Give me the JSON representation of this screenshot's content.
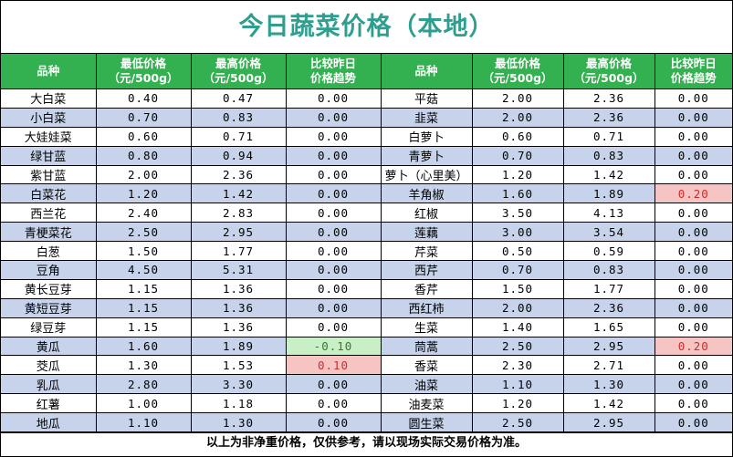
{
  "title": "今日蔬菜价格（本地）",
  "headers": {
    "name": "品种",
    "low": "最低价格（元/500g）",
    "high": "最高价格（元/500g）",
    "trend": "比较昨日价格趋势"
  },
  "rows": [
    {
      "left": {
        "name": "大白菜",
        "low": "0.40",
        "high": "0.47",
        "trend": "0.00"
      },
      "right": {
        "name": "平菇",
        "low": "2.00",
        "high": "2.36",
        "trend": "0.00"
      }
    },
    {
      "left": {
        "name": "小白菜",
        "low": "0.70",
        "high": "0.83",
        "trend": "0.00"
      },
      "right": {
        "name": "韭菜",
        "low": "2.00",
        "high": "2.36",
        "trend": "0.00"
      }
    },
    {
      "left": {
        "name": "大娃娃菜",
        "low": "0.60",
        "high": "0.71",
        "trend": "0.00"
      },
      "right": {
        "name": "白萝卜",
        "low": "0.60",
        "high": "0.71",
        "trend": "0.00"
      }
    },
    {
      "left": {
        "name": "绿甘蓝",
        "low": "0.80",
        "high": "0.94",
        "trend": "0.00"
      },
      "right": {
        "name": "青萝卜",
        "low": "0.70",
        "high": "0.83",
        "trend": "0.00"
      }
    },
    {
      "left": {
        "name": "紫甘蓝",
        "low": "2.00",
        "high": "2.36",
        "trend": "0.00"
      },
      "right": {
        "name": "萝卜（心里美）",
        "low": "1.20",
        "high": "1.42",
        "trend": "0.00"
      }
    },
    {
      "left": {
        "name": "白菜花",
        "low": "1.20",
        "high": "1.42",
        "trend": "0.00"
      },
      "right": {
        "name": "羊角椒",
        "low": "1.60",
        "high": "1.89",
        "trend": "0.20"
      }
    },
    {
      "left": {
        "name": "西兰花",
        "low": "2.40",
        "high": "2.83",
        "trend": "0.00"
      },
      "right": {
        "name": "红椒",
        "low": "3.50",
        "high": "4.13",
        "trend": "0.00"
      }
    },
    {
      "left": {
        "name": "青梗菜花",
        "low": "2.50",
        "high": "2.95",
        "trend": "0.00"
      },
      "right": {
        "name": "莲藕",
        "low": "3.00",
        "high": "3.54",
        "trend": "0.00"
      }
    },
    {
      "left": {
        "name": "白葱",
        "low": "1.50",
        "high": "1.77",
        "trend": "0.00"
      },
      "right": {
        "name": "芹菜",
        "low": "0.50",
        "high": "0.59",
        "trend": "0.00"
      }
    },
    {
      "left": {
        "name": "豆角",
        "low": "4.50",
        "high": "5.31",
        "trend": "0.00"
      },
      "right": {
        "name": "西芹",
        "low": "0.70",
        "high": "0.83",
        "trend": "0.00"
      }
    },
    {
      "left": {
        "name": "黄长豆芽",
        "low": "1.15",
        "high": "1.36",
        "trend": "0.00"
      },
      "right": {
        "name": "香芹",
        "low": "1.50",
        "high": "1.77",
        "trend": "0.00"
      }
    },
    {
      "left": {
        "name": "黄短豆芽",
        "low": "1.15",
        "high": "1.36",
        "trend": "0.00"
      },
      "right": {
        "name": "西红柿",
        "low": "2.00",
        "high": "2.36",
        "trend": "0.00"
      }
    },
    {
      "left": {
        "name": "绿豆芽",
        "low": "1.15",
        "high": "1.36",
        "trend": "0.00"
      },
      "right": {
        "name": "生菜",
        "low": "1.40",
        "high": "1.65",
        "trend": "0.00"
      }
    },
    {
      "left": {
        "name": "黄瓜",
        "low": "1.60",
        "high": "1.89",
        "trend": "-0.10"
      },
      "right": {
        "name": "茼蒿",
        "low": "2.50",
        "high": "2.95",
        "trend": "0.20"
      }
    },
    {
      "left": {
        "name": "茭瓜",
        "low": "1.30",
        "high": "1.53",
        "trend": "0.10"
      },
      "right": {
        "name": "香菜",
        "low": "2.30",
        "high": "2.71",
        "trend": "0.00"
      }
    },
    {
      "left": {
        "name": "乳瓜",
        "low": "2.80",
        "high": "3.30",
        "trend": "0.00"
      },
      "right": {
        "name": "油菜",
        "low": "1.10",
        "high": "1.30",
        "trend": "0.00"
      }
    },
    {
      "left": {
        "name": "红薯",
        "low": "1.00",
        "high": "1.18",
        "trend": "0.00"
      },
      "right": {
        "name": "油麦菜",
        "low": "1.20",
        "high": "1.42",
        "trend": "0.00"
      }
    },
    {
      "left": {
        "name": "地瓜",
        "low": "1.10",
        "high": "1.30",
        "trend": "0.00"
      },
      "right": {
        "name": "圆生菜",
        "low": "2.50",
        "high": "2.95",
        "trend": "0.00"
      }
    }
  ],
  "footer": "以上为非净重价格，仅供参考，请以现场实际交易价格为准。",
  "colors": {
    "title": "#2e9e8e",
    "header_bg": "#33b04f",
    "stripe": "#c7d3ea",
    "down_bg": "#c9efc6",
    "up_bg": "#f7c4c4",
    "up_text": "#d12a2a"
  }
}
